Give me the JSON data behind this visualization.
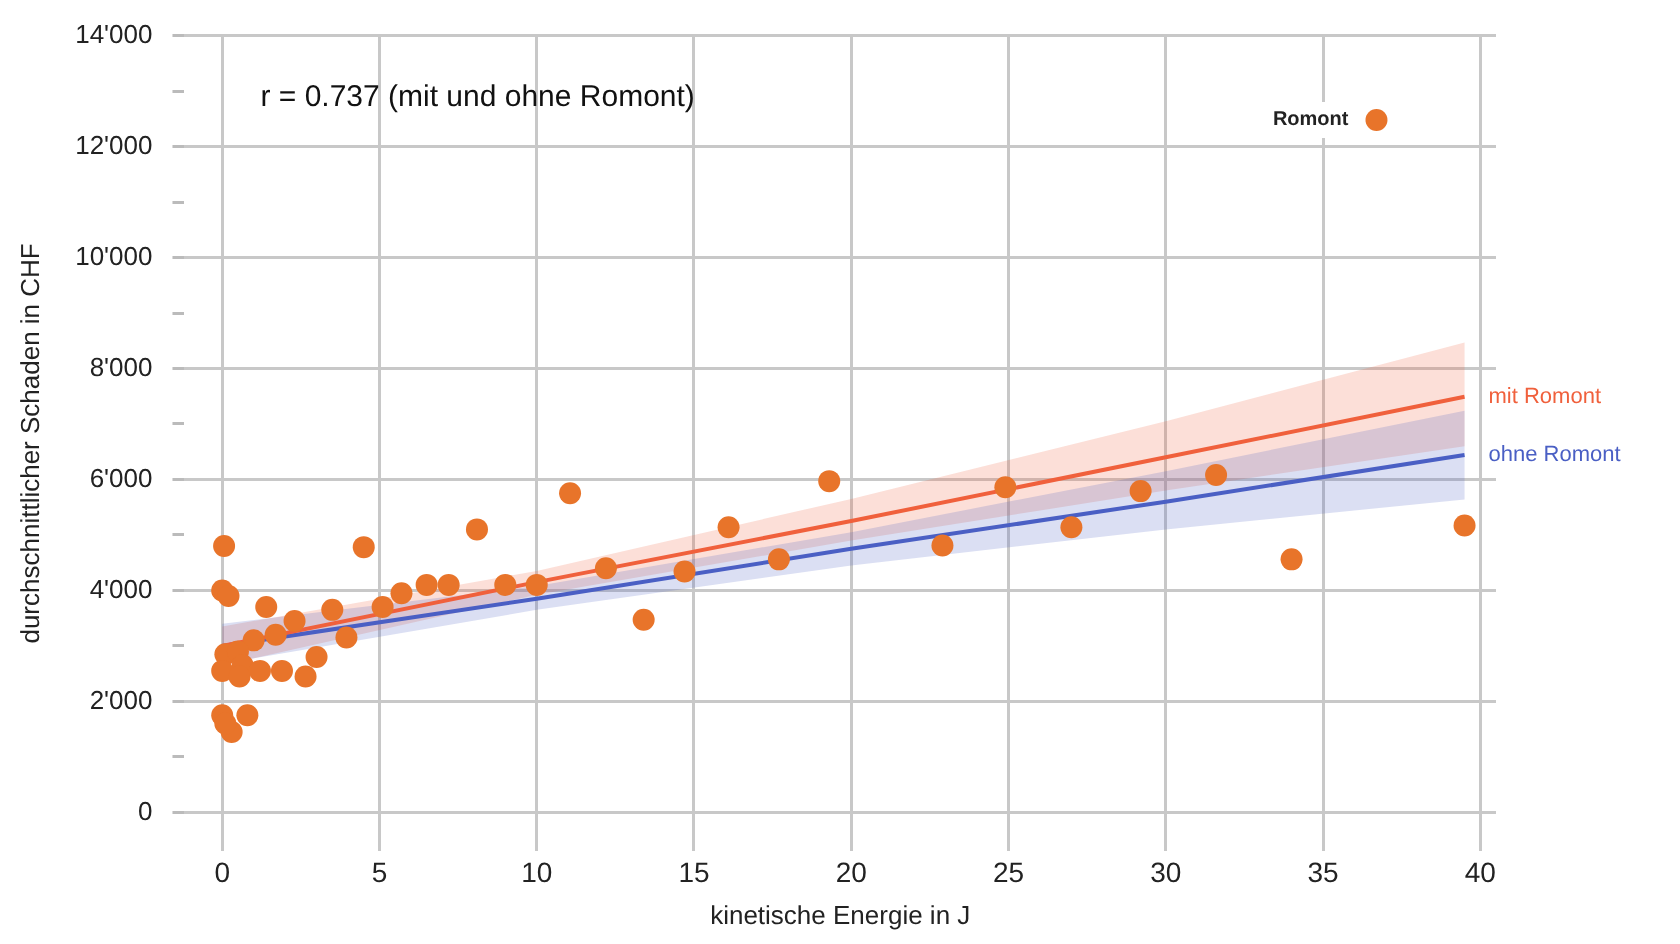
{
  "chart_data": {
    "type": "scatter",
    "xlabel": "kinetische Energie in J",
    "ylabel": "durchschnittlicher Schaden in CHF",
    "annotations": [
      "r = 0.737 (mit und ohne Romont)",
      {
        "text": "Romont",
        "x": 36.7,
        "y": 12480
      }
    ],
    "xlim": [
      -1.2,
      40.5
    ],
    "xticks": [
      0,
      5,
      10,
      15,
      20,
      25,
      30,
      35,
      40
    ],
    "ylim": [
      -700,
      14000
    ],
    "yticks": [
      {
        "value": 0,
        "label": "0"
      },
      {
        "value": 1000,
        "label": null
      },
      {
        "value": 2000,
        "label": "2'000"
      },
      {
        "value": 3000,
        "label": null
      },
      {
        "value": 4000,
        "label": "4'000"
      },
      {
        "value": 5000,
        "label": null
      },
      {
        "value": 6000,
        "label": "6'000"
      },
      {
        "value": 7000,
        "label": null
      },
      {
        "value": 8000,
        "label": "8'000"
      },
      {
        "value": 9000,
        "label": null
      },
      {
        "value": 10000,
        "label": "10'000"
      },
      {
        "value": 11000,
        "label": null
      },
      {
        "value": 12000,
        "label": "12'000"
      },
      {
        "value": 13000,
        "label": null
      },
      {
        "value": 14000,
        "label": "14'000"
      }
    ],
    "grid": true,
    "legend": false,
    "series": [
      {
        "marker": "circle",
        "color": "#e8742a",
        "x": [
          0.06,
          0,
          0.2,
          4.5,
          1.4,
          1.7,
          2.3,
          1.0,
          0.1,
          0.5,
          0,
          0.65,
          0.55,
          1.2,
          1.9,
          2.65,
          3.0,
          3.5,
          3.95,
          5.1,
          5.7,
          6.5,
          7.2,
          8.1,
          9.0,
          0,
          0.3,
          0.8,
          0.1,
          10.0,
          11.06,
          12.2,
          13.4,
          14.7,
          16.1,
          17.7,
          19.3,
          22.9,
          24.9,
          27.0,
          29.2,
          31.6,
          34.0,
          39.5,
          36.7
        ],
        "values": [
          4800,
          4000,
          3900,
          4780,
          3700,
          3200,
          3450,
          3100,
          2850,
          2900,
          2550,
          2650,
          2450,
          2550,
          2550,
          2450,
          2800,
          3650,
          3150,
          3700,
          3950,
          4100,
          4100,
          5100,
          4100,
          1750,
          1450,
          1750,
          1600,
          4100,
          5750,
          4400,
          3470,
          4340,
          5140,
          4560,
          5970,
          4810,
          5860,
          5140,
          5790,
          6080,
          4560,
          5170,
          12480
        ]
      },
      {
        "type": "line",
        "marker": "none",
        "name": "mit Romont",
        "color": "#f0603c",
        "x": [
          0,
          10,
          20,
          30,
          39.5
        ],
        "values": [
          3000,
          4150,
          5250,
          6400,
          7490
        ],
        "lower": [
          2650,
          3920,
          4900,
          5800,
          6600
        ],
        "upper": [
          3350,
          4350,
          5650,
          7050,
          8470
        ]
      },
      {
        "type": "line",
        "marker": "none",
        "name": "ohne Romont",
        "color": "#4a5fc4",
        "x": [
          0,
          10,
          20,
          30,
          39.5
        ],
        "values": [
          3000,
          3850,
          4750,
          5600,
          6440
        ],
        "lower": [
          2680,
          3650,
          4450,
          5100,
          5640
        ],
        "upper": [
          3400,
          4080,
          5050,
          6150,
          7240
        ]
      }
    ]
  }
}
